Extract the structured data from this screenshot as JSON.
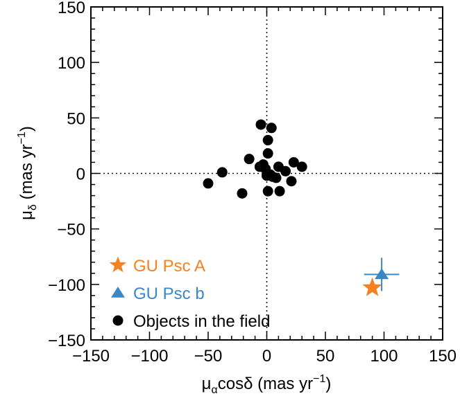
{
  "chart_data": {
    "type": "scatter",
    "xlabel": {
      "base": "μ",
      "sub": "α",
      "rest": "cosδ (mas yr",
      "sup": "−1",
      "close": ")"
    },
    "ylabel": {
      "base": "μ",
      "sub": "δ",
      "rest": " (mas yr",
      "sup": "−1",
      "close": ")"
    },
    "xlim": [
      -150,
      150
    ],
    "ylim": [
      -150,
      150
    ],
    "xticks": [
      -150,
      -100,
      -50,
      0,
      50,
      100,
      150
    ],
    "yticks": [
      -150,
      -100,
      -50,
      0,
      50,
      100,
      150
    ],
    "xtick_labels": [
      "−150",
      "−100",
      "−50",
      "0",
      "50",
      "100",
      "150"
    ],
    "ytick_labels": [
      "−150",
      "−100",
      "−50",
      "0",
      "50",
      "100",
      "150"
    ],
    "zero_lines": true,
    "legend_position": "bottom-left",
    "series": [
      {
        "name": "GU Psc A",
        "marker": "star",
        "color": "#F58220",
        "points": [
          [
            90,
            -103
          ]
        ]
      },
      {
        "name": "GU Psc b",
        "marker": "triangle",
        "color": "#3A87C8",
        "points": [
          [
            98,
            -91
          ]
        ],
        "xerr": [
          15
        ],
        "yerr": [
          15
        ]
      },
      {
        "name": "Objects in the field",
        "marker": "circle",
        "color": "#000000",
        "points": [
          [
            -5,
            44
          ],
          [
            4,
            41
          ],
          [
            1,
            30
          ],
          [
            1,
            18
          ],
          [
            -15,
            13
          ],
          [
            -3,
            8
          ],
          [
            -6,
            6
          ],
          [
            -1,
            4
          ],
          [
            23,
            10
          ],
          [
            30,
            6
          ],
          [
            10,
            6
          ],
          [
            16,
            2
          ],
          [
            -38,
            1
          ],
          [
            3,
            -1
          ],
          [
            0,
            -2
          ],
          [
            5,
            -3
          ],
          [
            8,
            -4
          ],
          [
            21,
            -7
          ],
          [
            -50,
            -9
          ],
          [
            -21,
            -18
          ],
          [
            1,
            -16
          ],
          [
            11,
            -16
          ]
        ]
      }
    ]
  }
}
